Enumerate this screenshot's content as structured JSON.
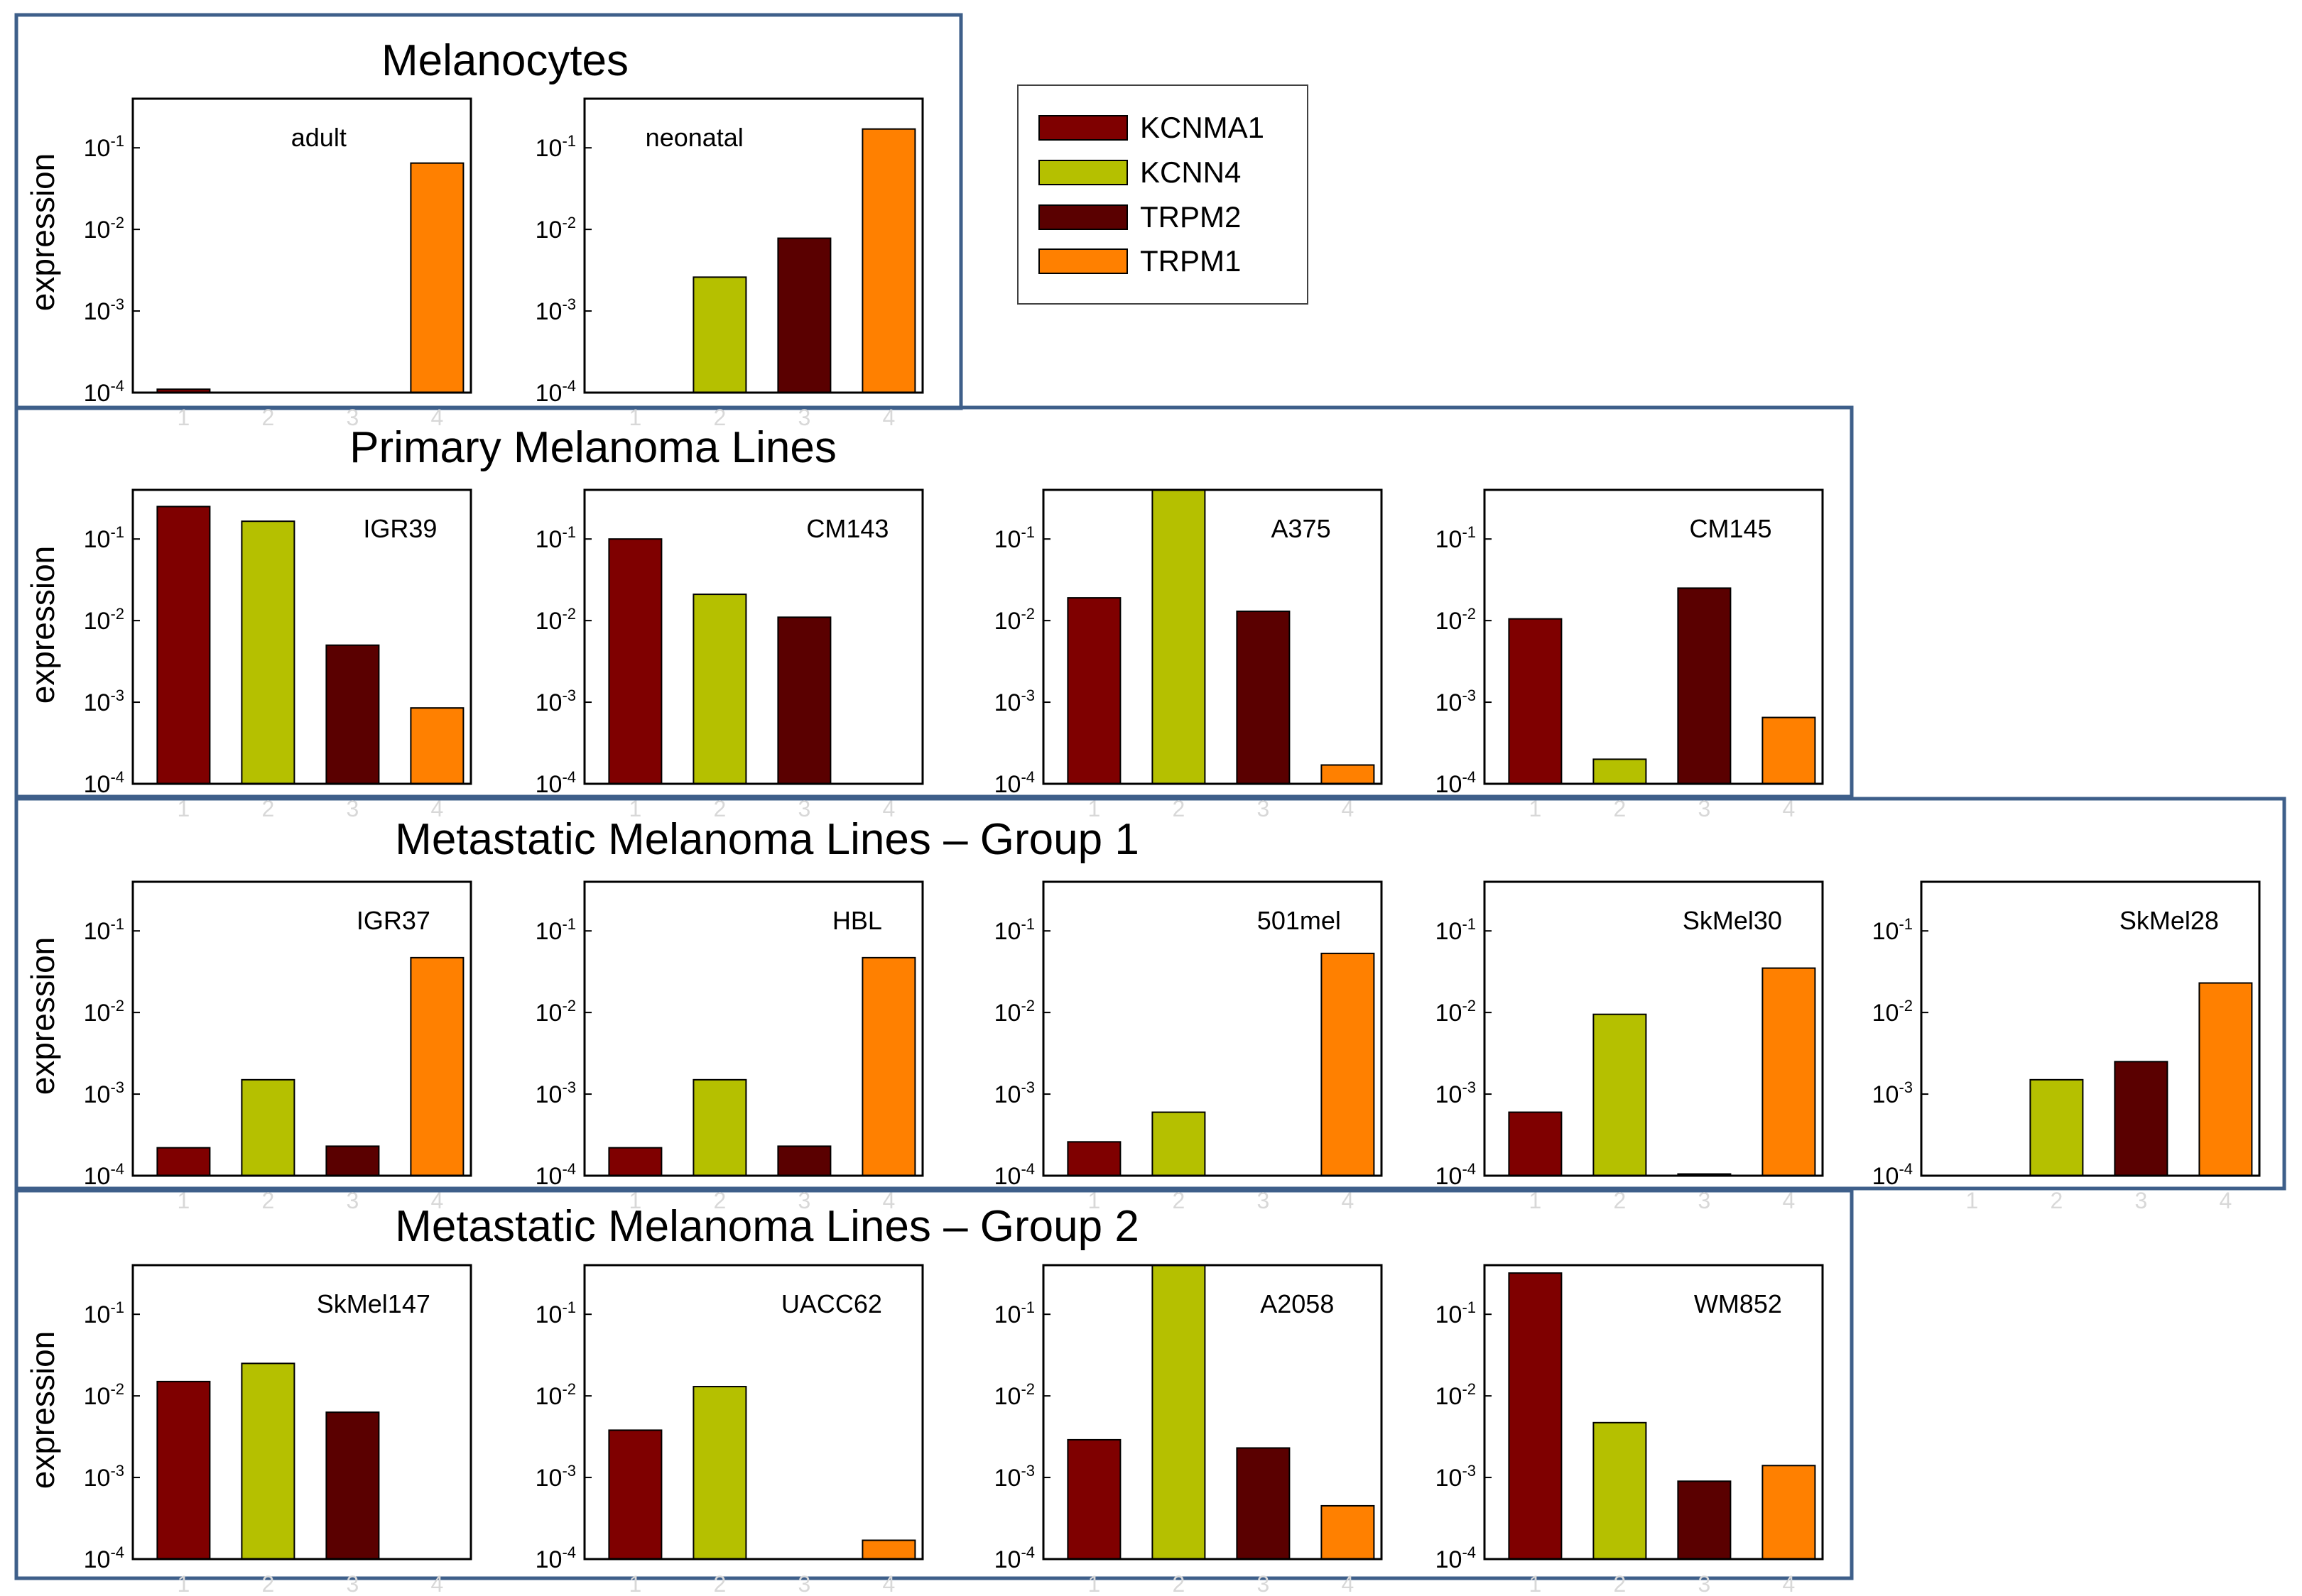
{
  "colors": {
    "KCNMA1": "#7f0000",
    "KCNN4": "#b5c000",
    "TRPM2": "#5a0000",
    "TRPM1": "#ff8000",
    "group_frame": "#3e5f8a"
  },
  "legend": {
    "items": [
      {
        "label": "KCNMA1",
        "color": "#7f0000"
      },
      {
        "label": "KCNN4",
        "color": "#b5c000"
      },
      {
        "label": "TRPM2",
        "color": "#5a0000"
      },
      {
        "label": "TRPM1",
        "color": "#ff8000"
      }
    ]
  },
  "axis": {
    "ylabel": "expression",
    "scale": "log10",
    "ylim": [
      0.0001,
      0.4
    ],
    "yticks": [
      {
        "value": 0.1,
        "base": "10",
        "exp": "-1"
      },
      {
        "value": 0.01,
        "base": "10",
        "exp": "-2"
      },
      {
        "value": 0.001,
        "base": "10",
        "exp": "-3"
      },
      {
        "value": 0.0001,
        "base": "10",
        "exp": "-4"
      }
    ],
    "xticks": [
      "1",
      "2",
      "3",
      "4"
    ]
  },
  "chart_data": [
    {
      "type": "bar",
      "group": "Melanocytes",
      "title": "adult",
      "categories": [
        "KCNMA1",
        "KCNN4",
        "TRPM2",
        "TRPM1"
      ],
      "values": [
        0.00011,
        null,
        null,
        0.065
      ],
      "xlabel": "",
      "ylabel": "expression",
      "yscale": "log",
      "ylim": [
        0.0001,
        0.4
      ]
    },
    {
      "type": "bar",
      "group": "Melanocytes",
      "title": "neonatal",
      "categories": [
        "KCNMA1",
        "KCNN4",
        "TRPM2",
        "TRPM1"
      ],
      "values": [
        null,
        0.0026,
        0.0078,
        0.17
      ],
      "xlabel": "",
      "ylabel": "expression",
      "yscale": "log",
      "ylim": [
        0.0001,
        0.4
      ]
    },
    {
      "type": "bar",
      "group": "Primary Melanoma Lines",
      "title": "IGR39",
      "categories": [
        "KCNMA1",
        "KCNN4",
        "TRPM2",
        "TRPM1"
      ],
      "values": [
        0.25,
        0.165,
        0.005,
        0.00085
      ],
      "xlabel": "",
      "ylabel": "expression",
      "yscale": "log",
      "ylim": [
        0.0001,
        0.4
      ]
    },
    {
      "type": "bar",
      "group": "Primary Melanoma Lines",
      "title": "CM143",
      "categories": [
        "KCNMA1",
        "KCNN4",
        "TRPM2",
        "TRPM1"
      ],
      "values": [
        0.1,
        0.021,
        0.011,
        null
      ],
      "xlabel": "",
      "ylabel": "expression",
      "yscale": "log",
      "ylim": [
        0.0001,
        0.4
      ]
    },
    {
      "type": "bar",
      "group": "Primary Melanoma Lines",
      "title": "A375",
      "categories": [
        "KCNMA1",
        "KCNN4",
        "TRPM2",
        "TRPM1"
      ],
      "values": [
        0.019,
        0.4,
        0.013,
        0.00017
      ],
      "xlabel": "",
      "ylabel": "expression",
      "yscale": "log",
      "ylim": [
        0.0001,
        0.4
      ]
    },
    {
      "type": "bar",
      "group": "Primary Melanoma Lines",
      "title": "CM145",
      "categories": [
        "KCNMA1",
        "KCNN4",
        "TRPM2",
        "TRPM1"
      ],
      "values": [
        0.0105,
        0.0002,
        0.025,
        0.00065
      ],
      "xlabel": "",
      "ylabel": "expression",
      "yscale": "log",
      "ylim": [
        0.0001,
        0.4
      ]
    },
    {
      "type": "bar",
      "group": "Metastatic Melanoma Lines – Group  1",
      "title": "IGR37",
      "categories": [
        "KCNMA1",
        "KCNN4",
        "TRPM2",
        "TRPM1"
      ],
      "values": [
        0.00022,
        0.0015,
        0.00023,
        0.047
      ],
      "xlabel": "",
      "ylabel": "expression",
      "yscale": "log",
      "ylim": [
        0.0001,
        0.4
      ]
    },
    {
      "type": "bar",
      "group": "Metastatic Melanoma Lines – Group  1",
      "title": "HBL",
      "categories": [
        "KCNMA1",
        "KCNN4",
        "TRPM2",
        "TRPM1"
      ],
      "values": [
        0.00022,
        0.0015,
        0.00023,
        0.047
      ],
      "xlabel": "",
      "ylabel": "expression",
      "yscale": "log",
      "ylim": [
        0.0001,
        0.4
      ]
    },
    {
      "type": "bar",
      "group": "Metastatic Melanoma Lines – Group  1",
      "title": "501mel",
      "categories": [
        "KCNMA1",
        "KCNN4",
        "TRPM2",
        "TRPM1"
      ],
      "values": [
        0.00026,
        0.0006,
        null,
        0.053
      ],
      "xlabel": "",
      "ylabel": "expression",
      "yscale": "log",
      "ylim": [
        0.0001,
        0.4
      ]
    },
    {
      "type": "bar",
      "group": "Metastatic Melanoma Lines – Group  1",
      "title": "SkMel30",
      "categories": [
        "KCNMA1",
        "KCNN4",
        "TRPM2",
        "TRPM1"
      ],
      "values": [
        0.0006,
        0.0095,
        0.000105,
        0.035
      ],
      "xlabel": "",
      "ylabel": "expression",
      "yscale": "log",
      "ylim": [
        0.0001,
        0.4
      ]
    },
    {
      "type": "bar",
      "group": "Metastatic Melanoma Lines – Group  1",
      "title": "SkMel28",
      "categories": [
        "KCNMA1",
        "KCNN4",
        "TRPM2",
        "TRPM1"
      ],
      "values": [
        null,
        0.0015,
        0.0025,
        0.023
      ],
      "xlabel": "",
      "ylabel": "expression",
      "yscale": "log",
      "ylim": [
        0.0001,
        0.4
      ]
    },
    {
      "type": "bar",
      "group": "Metastatic Melanoma Lines – Group  2",
      "title": "SkMel147",
      "categories": [
        "KCNMA1",
        "KCNN4",
        "TRPM2",
        "TRPM1"
      ],
      "values": [
        0.015,
        0.025,
        0.0063,
        null
      ],
      "xlabel": "",
      "ylabel": "expression",
      "yscale": "log",
      "ylim": [
        0.0001,
        0.4
      ]
    },
    {
      "type": "bar",
      "group": "Metastatic Melanoma Lines – Group  2",
      "title": "UACC62",
      "categories": [
        "KCNMA1",
        "KCNN4",
        "TRPM2",
        "TRPM1"
      ],
      "values": [
        0.0038,
        0.013,
        null,
        0.00017
      ],
      "xlabel": "",
      "ylabel": "expression",
      "yscale": "log",
      "ylim": [
        0.0001,
        0.4
      ]
    },
    {
      "type": "bar",
      "group": "Metastatic Melanoma Lines – Group  2",
      "title": "A2058",
      "categories": [
        "KCNMA1",
        "KCNN4",
        "TRPM2",
        "TRPM1"
      ],
      "values": [
        0.0029,
        0.4,
        0.0023,
        0.00045
      ],
      "xlabel": "",
      "ylabel": "expression",
      "yscale": "log",
      "ylim": [
        0.0001,
        0.4
      ]
    },
    {
      "type": "bar",
      "group": "Metastatic Melanoma Lines – Group  2",
      "title": "WM852",
      "categories": [
        "KCNMA1",
        "KCNN4",
        "TRPM2",
        "TRPM1"
      ],
      "values": [
        0.32,
        0.0047,
        0.0009,
        0.0014
      ],
      "xlabel": "",
      "ylabel": "expression",
      "yscale": "log",
      "ylim": [
        0.0001,
        0.4
      ]
    }
  ],
  "groups": [
    {
      "title": "Melanocytes"
    },
    {
      "title": "Primary Melanoma Lines"
    },
    {
      "title": "Metastatic Melanoma Lines – Group  1"
    },
    {
      "title": "Metastatic Melanoma Lines – Group  2"
    }
  ]
}
